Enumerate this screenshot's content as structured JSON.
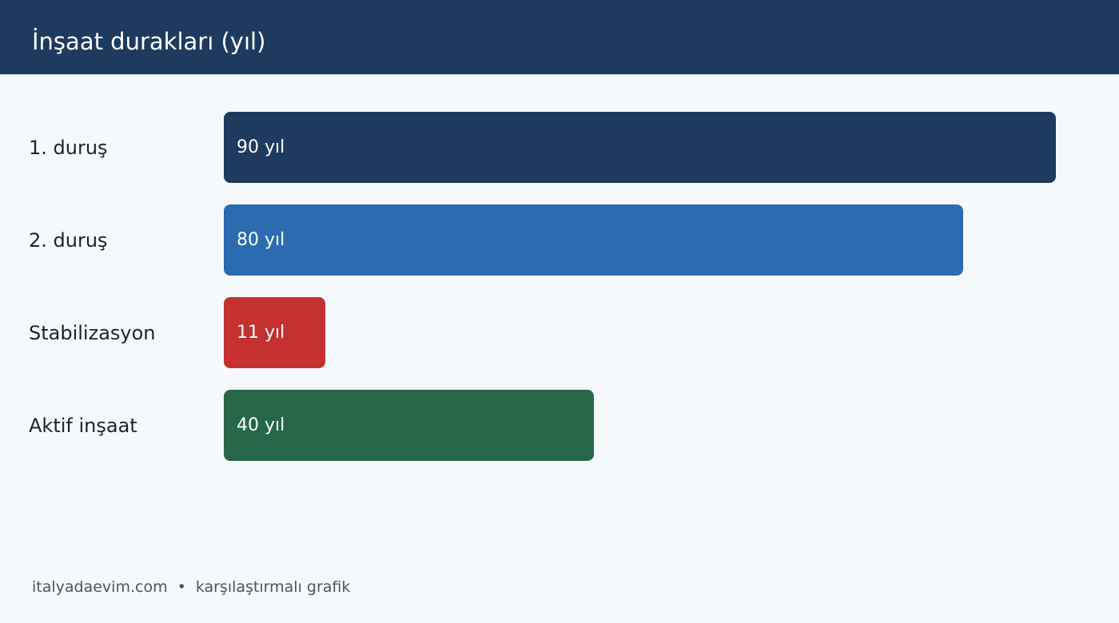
{
  "header": {
    "title": "İnşaat durakları (yıl)",
    "background": "#1e3a5f"
  },
  "chart_data": {
    "type": "bar",
    "orientation": "horizontal",
    "title": "İnşaat durakları (yıl)",
    "categories": [
      "1. duruş",
      "2. duruş",
      "Stabilizasyon",
      "Aktif inşaat"
    ],
    "values": [
      90,
      80,
      11,
      40
    ],
    "value_labels": [
      "90 yıl",
      "80 yıl",
      "11 yıl",
      "40 yıl"
    ],
    "colors": [
      "#1e3a5f",
      "#2b6cb0",
      "#c53030",
      "#276749"
    ],
    "xlim": [
      0,
      90
    ],
    "grid": false,
    "legend": "none"
  },
  "footer": {
    "site": "italyadaevim.com",
    "separator": "•",
    "caption": "karşılaştırmalı grafik"
  }
}
